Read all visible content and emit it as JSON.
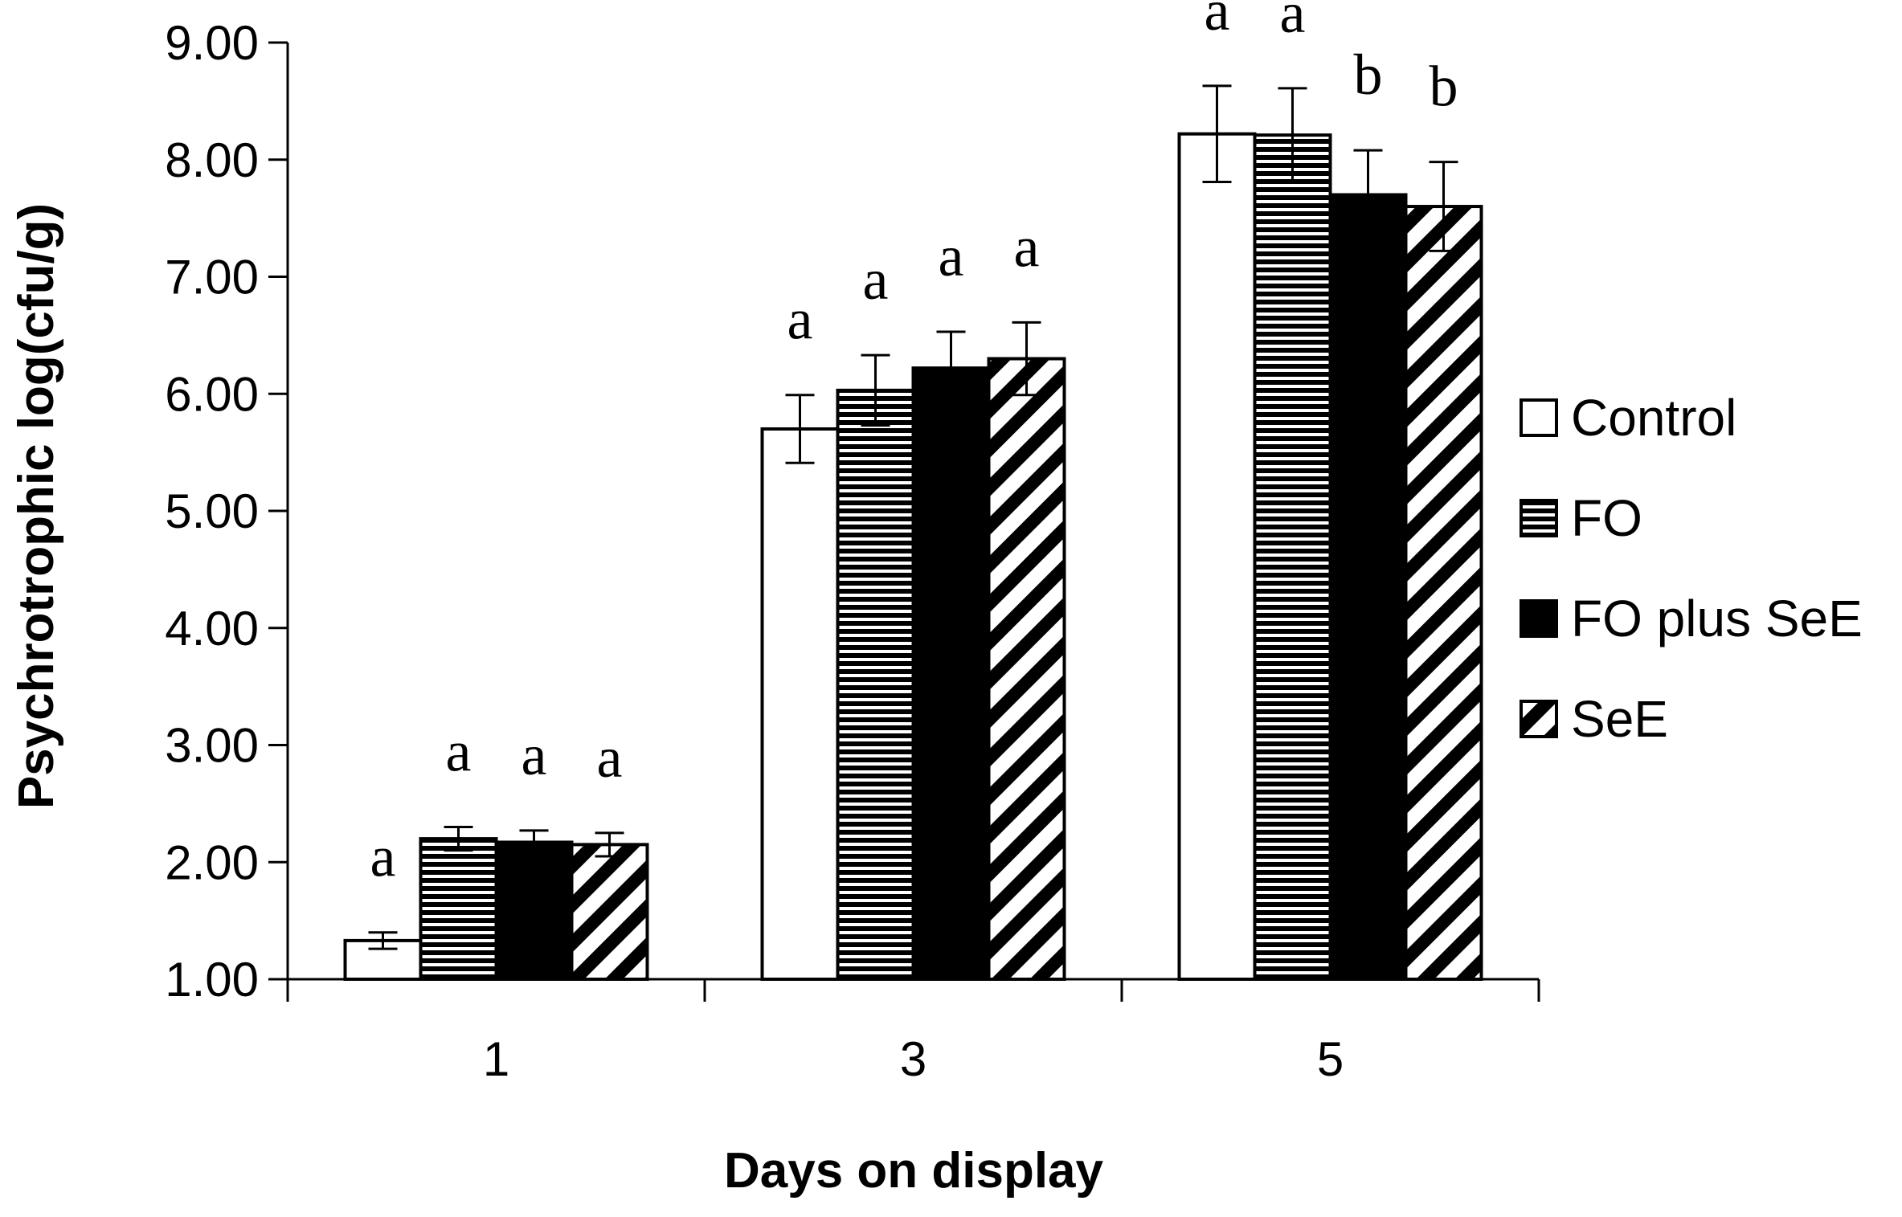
{
  "chart_data": {
    "type": "bar",
    "title": "",
    "xlabel": "Days on display",
    "ylabel": "Psychrotrophic log(cfu/g)",
    "categories": [
      "1",
      "3",
      "5"
    ],
    "ylim": [
      1.0,
      9.0
    ],
    "yticks": [
      "1.00",
      "2.00",
      "3.00",
      "4.00",
      "5.00",
      "6.00",
      "7.00",
      "8.00",
      "9.00"
    ],
    "grid": false,
    "legend_position": "right",
    "series": [
      {
        "name": "Control",
        "pattern": "empty",
        "values": [
          1.33,
          5.7,
          8.22
        ],
        "errors": [
          0.07,
          0.29,
          0.41
        ],
        "letters": [
          "a",
          "a",
          "a"
        ]
      },
      {
        "name": "FO",
        "pattern": "horizontal-lines",
        "values": [
          2.2,
          6.03,
          8.21
        ],
        "errors": [
          0.1,
          0.3,
          0.4
        ],
        "letters": [
          "a",
          "a",
          "a"
        ]
      },
      {
        "name": "FO plus SeE",
        "pattern": "solid",
        "values": [
          2.17,
          6.22,
          7.7
        ],
        "errors": [
          0.1,
          0.31,
          0.38
        ],
        "letters": [
          "a",
          "a",
          "b"
        ]
      },
      {
        "name": "SeE",
        "pattern": "diagonal-lines",
        "values": [
          2.15,
          6.3,
          7.6
        ],
        "errors": [
          0.1,
          0.31,
          0.38
        ],
        "letters": [
          "a",
          "a",
          "b"
        ]
      }
    ],
    "colors": {
      "stroke": "#000000",
      "fill_solid": "#000000",
      "fill_empty": "#ffffff"
    }
  }
}
